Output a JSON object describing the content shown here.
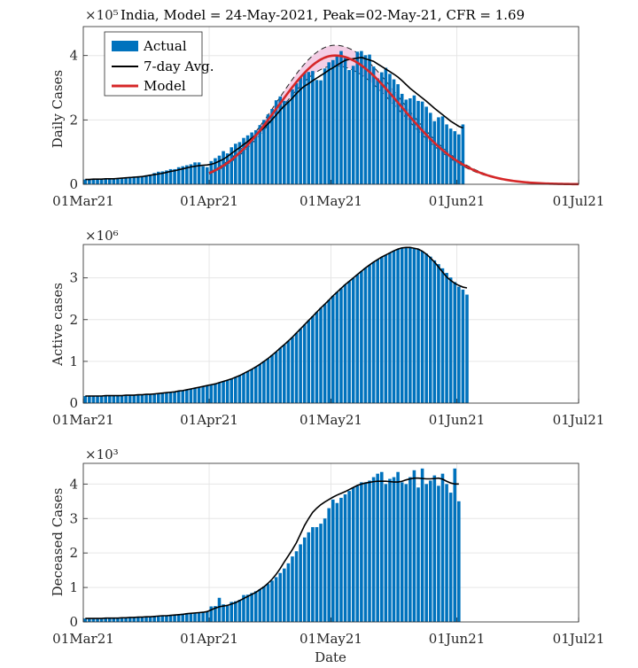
{
  "figure": {
    "title": "India, Model = 24-May-2021, Peak=02-May-21, CFR = 1.69",
    "xlabel": "Date"
  },
  "colors": {
    "bar": "#0072BD",
    "avg": "#000000",
    "model": "#D62728",
    "band_fill": "#F2C6E0",
    "grid": "#e6e6e6",
    "axis": "#262626"
  },
  "chart_data": [
    {
      "type": "bar",
      "name": "daily",
      "ylabel": "Daily Cases",
      "exponent": "×10⁵",
      "title": "India, Model = 24-May-2021, Peak=02-May-21, CFR = 1.69",
      "xlim": [
        "2021-03-01",
        "2021-07-01"
      ],
      "ylim": [
        0,
        4.9
      ],
      "yticks": [
        0,
        2,
        4
      ],
      "xticks": [
        "01Mar21",
        "01Apr21",
        "01May21",
        "01Jun21",
        "01Jul21"
      ],
      "grid": true,
      "legend": {
        "placement": "top-left",
        "entries": [
          "Actual",
          "7-day Avg.",
          "Model"
        ]
      },
      "bar_start_date": "2021-03-01",
      "actual": [
        0.15,
        0.16,
        0.15,
        0.17,
        0.17,
        0.18,
        0.18,
        0.16,
        0.17,
        0.2,
        0.22,
        0.23,
        0.24,
        0.25,
        0.26,
        0.28,
        0.3,
        0.35,
        0.39,
        0.4,
        0.43,
        0.47,
        0.47,
        0.53,
        0.56,
        0.59,
        0.62,
        0.68,
        0.68,
        0.56,
        0.53,
        0.72,
        0.81,
        0.89,
        1.03,
        0.96,
        1.15,
        1.26,
        1.31,
        1.44,
        1.52,
        1.61,
        1.68,
        1.84,
        2.0,
        2.17,
        2.34,
        2.61,
        2.73,
        2.59,
        2.6,
        2.95,
        3.14,
        3.32,
        3.46,
        3.49,
        3.52,
        3.24,
        3.23,
        3.6,
        3.79,
        3.86,
        4.01,
        4.14,
        3.92,
        3.55,
        3.68,
        4.12,
        4.14,
        4.01,
        4.03,
        3.66,
        3.29,
        3.48,
        3.62,
        3.43,
        3.26,
        3.11,
        2.81,
        2.63,
        2.67,
        2.76,
        2.59,
        2.57,
        2.41,
        2.22,
        1.96,
        2.08,
        2.11,
        1.86,
        1.73,
        1.65,
        1.55,
        1.86
      ],
      "avg": [
        0.15,
        0.15,
        0.16,
        0.16,
        0.16,
        0.17,
        0.17,
        0.17,
        0.18,
        0.19,
        0.2,
        0.21,
        0.22,
        0.23,
        0.24,
        0.26,
        0.28,
        0.3,
        0.32,
        0.34,
        0.37,
        0.4,
        0.42,
        0.45,
        0.48,
        0.51,
        0.54,
        0.56,
        0.58,
        0.59,
        0.6,
        0.62,
        0.66,
        0.72,
        0.78,
        0.86,
        0.96,
        1.05,
        1.14,
        1.24,
        1.33,
        1.43,
        1.53,
        1.64,
        1.76,
        1.88,
        2.01,
        2.15,
        2.3,
        2.43,
        2.55,
        2.68,
        2.82,
        2.95,
        3.05,
        3.13,
        3.22,
        3.3,
        3.38,
        3.46,
        3.55,
        3.62,
        3.7,
        3.78,
        3.85,
        3.88,
        3.9,
        3.92,
        3.94,
        3.9,
        3.86,
        3.82,
        3.74,
        3.66,
        3.58,
        3.5,
        3.42,
        3.33,
        3.22,
        3.1,
        2.98,
        2.88,
        2.78,
        2.68,
        2.58,
        2.47,
        2.36,
        2.26,
        2.16,
        2.06,
        1.96,
        1.88,
        1.8,
        1.75
      ],
      "model_start_date": "2021-04-01",
      "model_peak_date": "2021-05-02",
      "model_peak_value": 4.0,
      "model_band": 0.08
    },
    {
      "type": "bar",
      "name": "active",
      "ylabel": "Active cases",
      "exponent": "×10⁶",
      "xlim": [
        "2021-03-01",
        "2021-07-01"
      ],
      "ylim": [
        0,
        3.8
      ],
      "yticks": [
        0,
        1,
        2,
        3
      ],
      "xticks": [
        "01Mar21",
        "01Apr21",
        "01May21",
        "01Jun21",
        "01Jul21"
      ],
      "grid": true,
      "bar_start_date": "2021-03-01",
      "actual": [
        0.17,
        0.17,
        0.17,
        0.17,
        0.17,
        0.18,
        0.18,
        0.18,
        0.18,
        0.18,
        0.19,
        0.19,
        0.19,
        0.2,
        0.2,
        0.21,
        0.21,
        0.22,
        0.23,
        0.24,
        0.25,
        0.26,
        0.27,
        0.29,
        0.3,
        0.32,
        0.34,
        0.36,
        0.38,
        0.4,
        0.42,
        0.44,
        0.46,
        0.49,
        0.52,
        0.55,
        0.58,
        0.62,
        0.66,
        0.71,
        0.76,
        0.81,
        0.87,
        0.93,
        1.0,
        1.07,
        1.15,
        1.23,
        1.32,
        1.4,
        1.49,
        1.58,
        1.68,
        1.78,
        1.88,
        1.98,
        2.08,
        2.18,
        2.28,
        2.37,
        2.47,
        2.57,
        2.66,
        2.75,
        2.84,
        2.92,
        3.0,
        3.08,
        3.16,
        3.24,
        3.31,
        3.38,
        3.44,
        3.5,
        3.55,
        3.6,
        3.65,
        3.69,
        3.72,
        3.73,
        3.73,
        3.7,
        3.68,
        3.64,
        3.58,
        3.51,
        3.42,
        3.33,
        3.23,
        3.12,
        3.01,
        2.9,
        2.79,
        2.72,
        2.6
      ],
      "avg": [
        0.17,
        0.17,
        0.17,
        0.17,
        0.17,
        0.18,
        0.18,
        0.18,
        0.18,
        0.18,
        0.19,
        0.19,
        0.19,
        0.2,
        0.2,
        0.21,
        0.21,
        0.22,
        0.23,
        0.24,
        0.25,
        0.26,
        0.27,
        0.29,
        0.3,
        0.32,
        0.34,
        0.36,
        0.38,
        0.4,
        0.42,
        0.44,
        0.46,
        0.49,
        0.52,
        0.55,
        0.58,
        0.62,
        0.66,
        0.71,
        0.76,
        0.81,
        0.87,
        0.93,
        1.0,
        1.07,
        1.15,
        1.23,
        1.32,
        1.4,
        1.49,
        1.58,
        1.68,
        1.78,
        1.88,
        1.98,
        2.08,
        2.18,
        2.28,
        2.37,
        2.47,
        2.57,
        2.66,
        2.75,
        2.84,
        2.92,
        3.0,
        3.08,
        3.16,
        3.24,
        3.31,
        3.38,
        3.44,
        3.5,
        3.55,
        3.6,
        3.65,
        3.69,
        3.72,
        3.73,
        3.73,
        3.71,
        3.69,
        3.64,
        3.57,
        3.48,
        3.38,
        3.26,
        3.14,
        3.02,
        2.94,
        2.87,
        2.82,
        2.78,
        2.76
      ]
    },
    {
      "type": "bar",
      "name": "deceased",
      "ylabel": "Deceased Cases",
      "exponent": "×10³",
      "xlabel": "Date",
      "xlim": [
        "2021-03-01",
        "2021-07-01"
      ],
      "ylim": [
        0,
        4.6
      ],
      "yticks": [
        0,
        1,
        2,
        3,
        4
      ],
      "xticks": [
        "01Mar21",
        "01Apr21",
        "01May21",
        "01Jun21",
        "01Jul21"
      ],
      "grid": true,
      "bar_start_date": "2021-03-01",
      "actual": [
        0.1,
        0.1,
        0.1,
        0.11,
        0.1,
        0.11,
        0.11,
        0.1,
        0.12,
        0.12,
        0.13,
        0.12,
        0.14,
        0.14,
        0.15,
        0.15,
        0.16,
        0.17,
        0.17,
        0.18,
        0.19,
        0.2,
        0.21,
        0.22,
        0.24,
        0.25,
        0.26,
        0.27,
        0.28,
        0.29,
        0.3,
        0.45,
        0.46,
        0.7,
        0.51,
        0.47,
        0.58,
        0.6,
        0.64,
        0.78,
        0.79,
        0.84,
        0.89,
        0.95,
        1.03,
        1.1,
        1.2,
        1.3,
        1.42,
        1.55,
        1.7,
        1.9,
        2.05,
        2.25,
        2.45,
        2.6,
        2.75,
        2.75,
        2.85,
        3.0,
        3.3,
        3.55,
        3.45,
        3.6,
        3.7,
        3.8,
        3.9,
        3.95,
        4.05,
        4.05,
        4.1,
        4.2,
        4.3,
        4.35,
        4.0,
        4.15,
        4.2,
        4.35,
        4.05,
        4.0,
        4.2,
        4.4,
        3.9,
        4.45,
        4.0,
        4.1,
        4.25,
        3.95,
        4.3,
        4.0,
        3.75,
        4.45,
        3.5
      ],
      "avg": [
        0.1,
        0.1,
        0.1,
        0.1,
        0.1,
        0.11,
        0.11,
        0.11,
        0.11,
        0.12,
        0.12,
        0.13,
        0.13,
        0.14,
        0.14,
        0.15,
        0.15,
        0.16,
        0.17,
        0.18,
        0.18,
        0.19,
        0.2,
        0.21,
        0.22,
        0.24,
        0.25,
        0.26,
        0.27,
        0.28,
        0.3,
        0.35,
        0.4,
        0.44,
        0.46,
        0.48,
        0.52,
        0.56,
        0.62,
        0.68,
        0.74,
        0.8,
        0.86,
        0.94,
        1.02,
        1.12,
        1.24,
        1.38,
        1.55,
        1.74,
        1.92,
        2.1,
        2.3,
        2.55,
        2.8,
        3.0,
        3.18,
        3.3,
        3.4,
        3.48,
        3.55,
        3.62,
        3.68,
        3.73,
        3.78,
        3.84,
        3.9,
        3.96,
        4.0,
        4.03,
        4.05,
        4.07,
        4.08,
        4.08,
        4.08,
        4.07,
        4.06,
        4.06,
        4.08,
        4.12,
        4.15,
        4.17,
        4.17,
        4.16,
        4.15,
        4.15,
        4.16,
        4.17,
        4.14,
        4.08,
        4.03,
        4.0,
        4.0
      ]
    }
  ]
}
